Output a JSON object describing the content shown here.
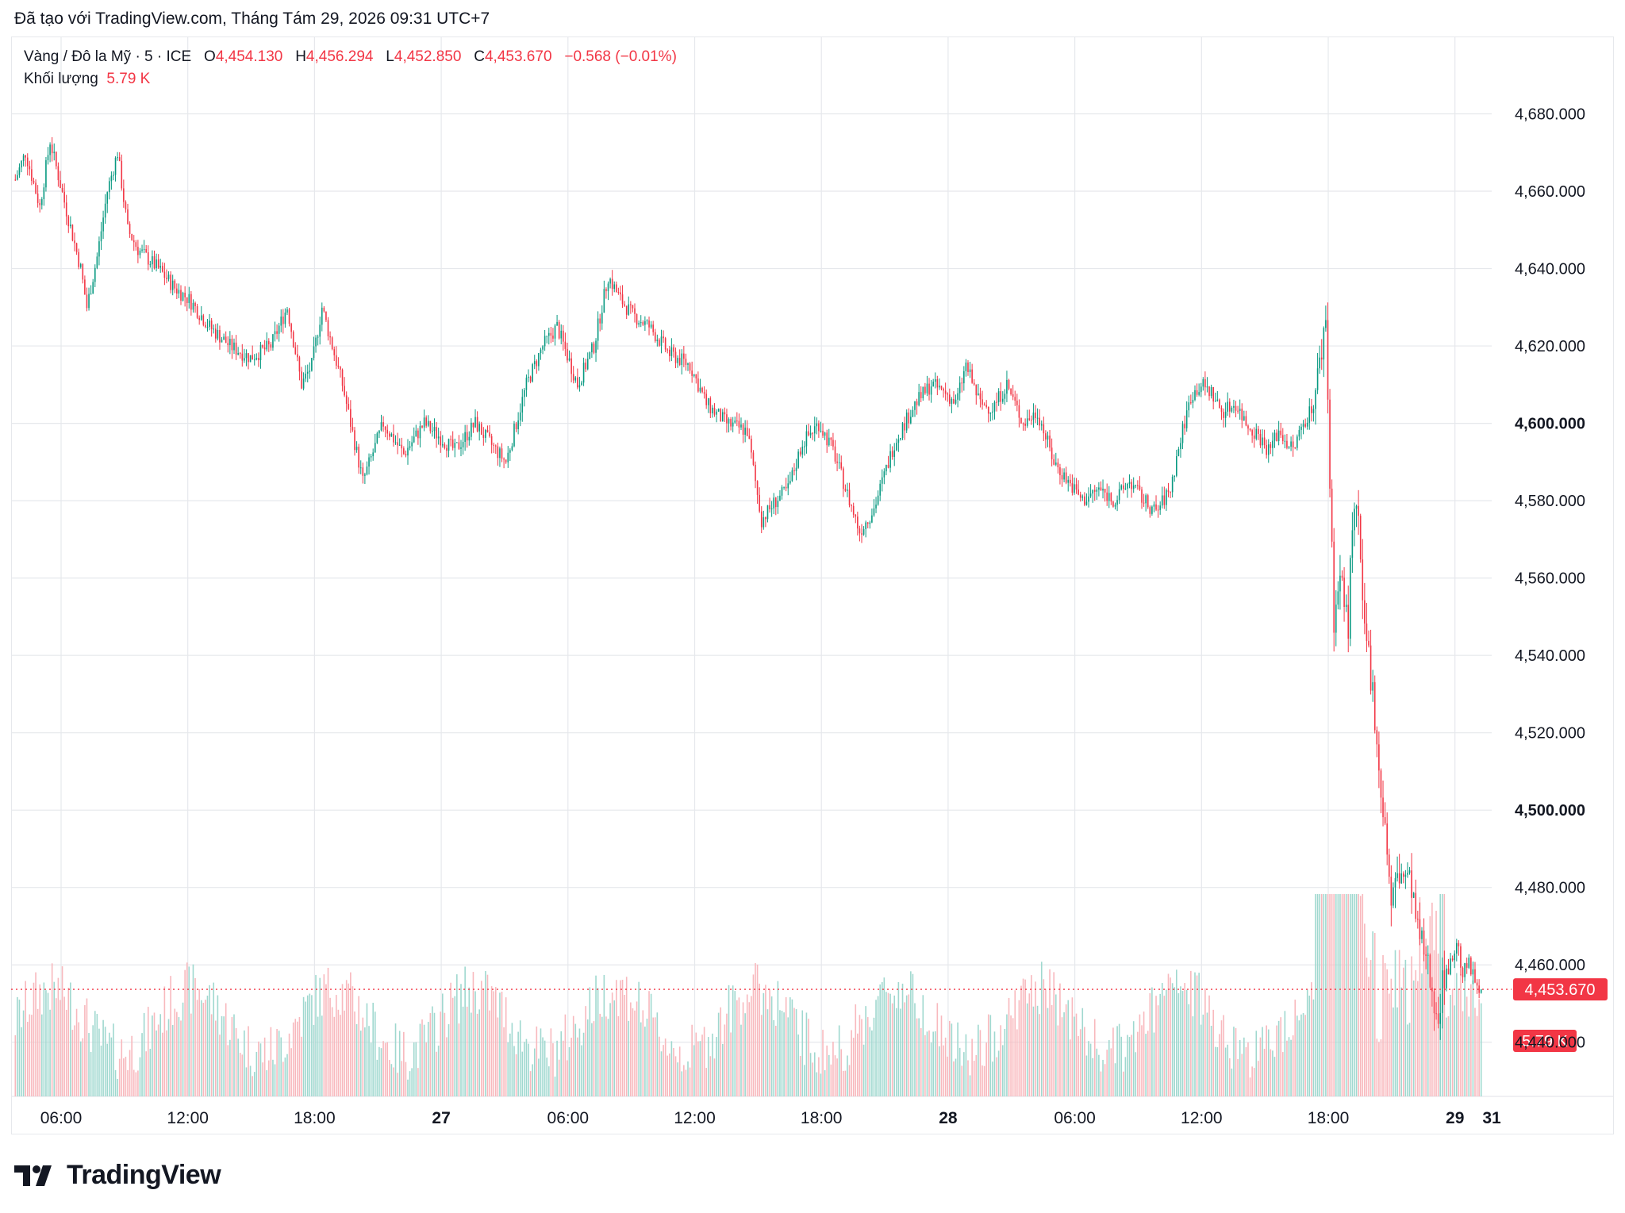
{
  "header": {
    "created_with": "Đã tạo với TradingView.com, Tháng Tám 29, 2026 09:31 UTC+7"
  },
  "legend": {
    "symbol": "Vàng / Đô la Mỹ · 5 · ICE",
    "o_label": "O",
    "o_value": "4,454.130",
    "h_label": "H",
    "h_value": "4,456.294",
    "l_label": "L",
    "l_value": "4,452.850",
    "c_label": "C",
    "c_value": "4,453.670",
    "change": "−0.568 (−0.01%)",
    "volume_label": "Khối lượng",
    "volume_value": "5.79 K"
  },
  "brand": {
    "name": "TradingView",
    "logo_icon": "tradingview-logo-icon"
  },
  "colors": {
    "up": "#089981",
    "down": "#f23645",
    "up_vol": "#9fd8cf",
    "down_vol": "#f8b8bd",
    "grid": "#e6e8ec"
  },
  "chart_data": {
    "type": "candlestick",
    "symbol": "Vàng / Đô la Mỹ · 5 · ICE",
    "x_tick_labels": [
      "06:00",
      "12:00",
      "18:00",
      "27",
      "06:00",
      "12:00",
      "18:00",
      "28",
      "06:00",
      "12:00",
      "18:00",
      "29",
      "31"
    ],
    "bold_x_labels": [
      "27",
      "28",
      "29",
      "31"
    ],
    "y_tick_labels": [
      "4,680.000",
      "4,660.000",
      "4,640.000",
      "4,620.000",
      "4,600.000",
      "4,580.000",
      "4,560.000",
      "4,540.000",
      "4,520.000",
      "4,500.000",
      "4,480.000",
      "4,460.000",
      "4,440.000"
    ],
    "bold_y_labels": [
      "4,600.000",
      "4,500.000"
    ],
    "ylim": [
      4426,
      4700
    ],
    "grid": true,
    "last_price": 4453.67,
    "last_price_label": "4,453.670",
    "last_volume_label": "5.79 K",
    "price_path": [
      [
        0,
        4663
      ],
      [
        5,
        4670
      ],
      [
        10,
        4660
      ],
      [
        12,
        4656
      ],
      [
        17,
        4673
      ],
      [
        25,
        4655
      ],
      [
        32,
        4640
      ],
      [
        35,
        4630
      ],
      [
        40,
        4643
      ],
      [
        45,
        4660
      ],
      [
        50,
        4670
      ],
      [
        55,
        4650
      ],
      [
        60,
        4645
      ],
      [
        70,
        4640
      ],
      [
        78,
        4635
      ],
      [
        85,
        4632
      ],
      [
        95,
        4625
      ],
      [
        105,
        4620
      ],
      [
        115,
        4617
      ],
      [
        125,
        4620
      ],
      [
        133,
        4630
      ],
      [
        140,
        4610
      ],
      [
        145,
        4615
      ],
      [
        150,
        4630
      ],
      [
        160,
        4610
      ],
      [
        170,
        4585
      ],
      [
        180,
        4600
      ],
      [
        190,
        4592
      ],
      [
        200,
        4600
      ],
      [
        215,
        4593
      ],
      [
        225,
        4600
      ],
      [
        232,
        4595
      ],
      [
        240,
        4590
      ],
      [
        250,
        4610
      ],
      [
        258,
        4620
      ],
      [
        265,
        4625
      ],
      [
        275,
        4610
      ],
      [
        283,
        4620
      ],
      [
        290,
        4638
      ],
      [
        296,
        4632
      ],
      [
        302,
        4628
      ],
      [
        310,
        4625
      ],
      [
        320,
        4618
      ],
      [
        330,
        4615
      ],
      [
        338,
        4605
      ],
      [
        348,
        4600
      ],
      [
        358,
        4598
      ],
      [
        365,
        4575
      ],
      [
        372,
        4580
      ],
      [
        378,
        4583
      ],
      [
        385,
        4595
      ],
      [
        393,
        4600
      ],
      [
        400,
        4593
      ],
      [
        408,
        4580
      ],
      [
        413,
        4572
      ],
      [
        420,
        4578
      ],
      [
        430,
        4595
      ],
      [
        440,
        4605
      ],
      [
        448,
        4610
      ],
      [
        455,
        4608
      ],
      [
        460,
        4605
      ],
      [
        465,
        4615
      ],
      [
        472,
        4605
      ],
      [
        478,
        4604
      ],
      [
        485,
        4610
      ],
      [
        493,
        4600
      ],
      [
        500,
        4603
      ],
      [
        508,
        4590
      ],
      [
        515,
        4585
      ],
      [
        522,
        4580
      ],
      [
        530,
        4583
      ],
      [
        538,
        4580
      ],
      [
        545,
        4585
      ],
      [
        552,
        4580
      ],
      [
        558,
        4577
      ],
      [
        565,
        4583
      ],
      [
        570,
        4596
      ],
      [
        575,
        4607
      ],
      [
        580,
        4610
      ],
      [
        585,
        4608
      ],
      [
        590,
        4603
      ],
      [
        597,
        4605
      ],
      [
        602,
        4600
      ],
      [
        608,
        4597
      ],
      [
        613,
        4593
      ],
      [
        618,
        4598
      ],
      [
        625,
        4593
      ],
      [
        630,
        4600
      ],
      [
        635,
        4605
      ],
      [
        638,
        4615
      ],
      [
        641,
        4628
      ],
      [
        643,
        4585
      ],
      [
        645,
        4550
      ],
      [
        648,
        4560
      ],
      [
        652,
        4548
      ],
      [
        654,
        4575
      ],
      [
        657,
        4575
      ],
      [
        659,
        4550
      ],
      [
        662,
        4540
      ],
      [
        665,
        4525
      ],
      [
        668,
        4505
      ],
      [
        671,
        4490
      ],
      [
        673,
        4475
      ],
      [
        676,
        4483
      ],
      [
        680,
        4483
      ],
      [
        683,
        4480
      ],
      [
        686,
        4468
      ],
      [
        690,
        4462
      ],
      [
        693,
        4453
      ],
      [
        696,
        4448
      ],
      [
        699,
        4458
      ],
      [
        702,
        4460
      ],
      [
        705,
        4466
      ],
      [
        708,
        4458
      ],
      [
        711,
        4460
      ],
      [
        714,
        4456
      ],
      [
        717,
        4454
      ]
    ]
  }
}
